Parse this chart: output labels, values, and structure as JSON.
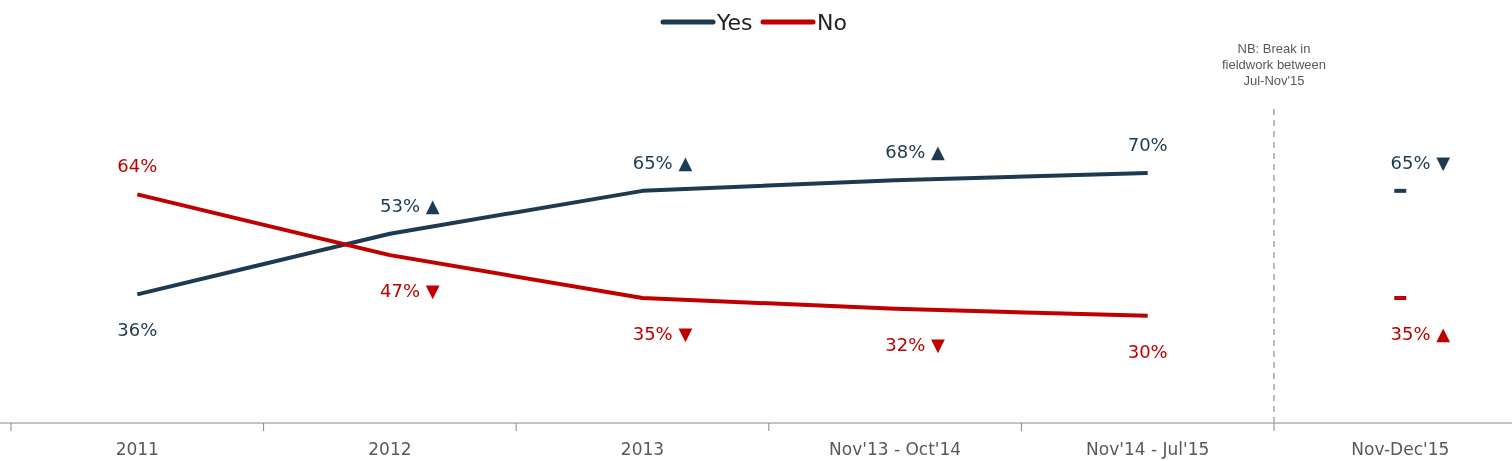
{
  "chart_data": {
    "type": "line",
    "categories": [
      "2011",
      "2012",
      "2013",
      "Nov'13 - Oct'14",
      "Nov'14 - Jul'15",
      "Nov-Dec'15"
    ],
    "series": [
      {
        "name": "Yes",
        "color": "#1c3a52",
        "values": [
          36,
          53,
          65,
          68,
          70,
          null
        ],
        "value_labels": [
          "36%",
          "53% ▲",
          "65% ▲",
          "68% ▲",
          "70%",
          null
        ]
      },
      {
        "name": "No",
        "color": "#c00000",
        "values": [
          64,
          47,
          35,
          32,
          30,
          null
        ],
        "value_labels": [
          "64%",
          "47% ▼",
          "35% ▼",
          "32% ▼",
          "30%",
          null
        ]
      },
      {
        "type": "scatter",
        "color": "#1c3a52",
        "x": [
          "Nov-Dec'15"
        ],
        "values": [
          65
        ],
        "value_labels": [
          "65% ▼"
        ]
      },
      {
        "type": "scatter",
        "color": "#c00000",
        "x": [
          "Nov-Dec'15"
        ],
        "values": [
          35
        ],
        "value_labels": [
          "35% ▲"
        ]
      }
    ],
    "annotations": [
      "NB: Break in fieldwork between Jul-Nov'15"
    ],
    "legend": "top"
  }
}
